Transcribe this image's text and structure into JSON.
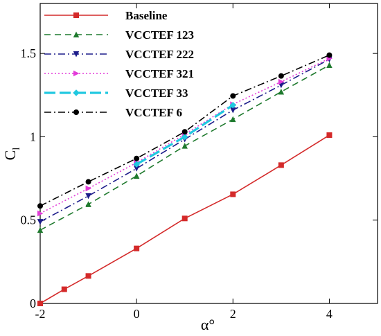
{
  "chart_data": {
    "type": "line",
    "xlabel": "α°",
    "ylabel": "C",
    "ylabel_sub": "l",
    "xlim": [
      -2,
      5
    ],
    "ylim": [
      0,
      1.8
    ],
    "xticks": [
      -2,
      0,
      2,
      4
    ],
    "yticks": [
      0,
      0.5,
      1,
      1.5
    ],
    "ytick_labels": [
      "0",
      "0.5",
      "1",
      "1.5"
    ],
    "grid": false,
    "legend_position": "top-left",
    "series": [
      {
        "name": "Baseline",
        "color": "#d42a2a",
        "dash": "",
        "marker": "square",
        "x": [
          -2,
          -1.5,
          -1,
          0,
          1,
          2,
          3,
          4
        ],
        "y": [
          0.0,
          0.085,
          0.165,
          0.33,
          0.51,
          0.655,
          0.83,
          1.01
        ]
      },
      {
        "name": "VCCTEF 123",
        "color": "#1f7a2e",
        "dash": "9,6",
        "marker": "triangle-up",
        "x": [
          -2,
          -1,
          0,
          1,
          2,
          3,
          4
        ],
        "y": [
          0.44,
          0.595,
          0.765,
          0.945,
          1.105,
          1.27,
          1.43
        ]
      },
      {
        "name": "VCCTEF 222",
        "color": "#1c1c8a",
        "dash": "10,4,2,4",
        "marker": "triangle-down",
        "x": [
          -2,
          -1,
          0,
          1,
          2,
          3,
          4
        ],
        "y": [
          0.49,
          0.645,
          0.81,
          0.985,
          1.16,
          1.31,
          1.465
        ]
      },
      {
        "name": "VCCTEF 321",
        "color": "#e33bd9",
        "dash": "2,3",
        "marker": "triangle-right",
        "x": [
          -2,
          -1,
          0,
          1,
          2,
          3,
          4
        ],
        "y": [
          0.54,
          0.69,
          0.845,
          1.015,
          1.195,
          1.33,
          1.47
        ]
      },
      {
        "name": "VCCTEF 33",
        "color": "#20c8e0",
        "dash": "16,6",
        "marker": "diamond",
        "x": [
          0,
          1,
          2
        ],
        "y": [
          0.835,
          1.0,
          1.19
        ]
      },
      {
        "name": "VCCTEF 6",
        "color": "#000000",
        "dash": "10,4,2,4",
        "marker": "circle",
        "x": [
          -2,
          -1,
          0,
          1,
          2,
          3,
          4
        ],
        "y": [
          0.585,
          0.73,
          0.87,
          1.03,
          1.245,
          1.365,
          1.49
        ]
      }
    ]
  }
}
